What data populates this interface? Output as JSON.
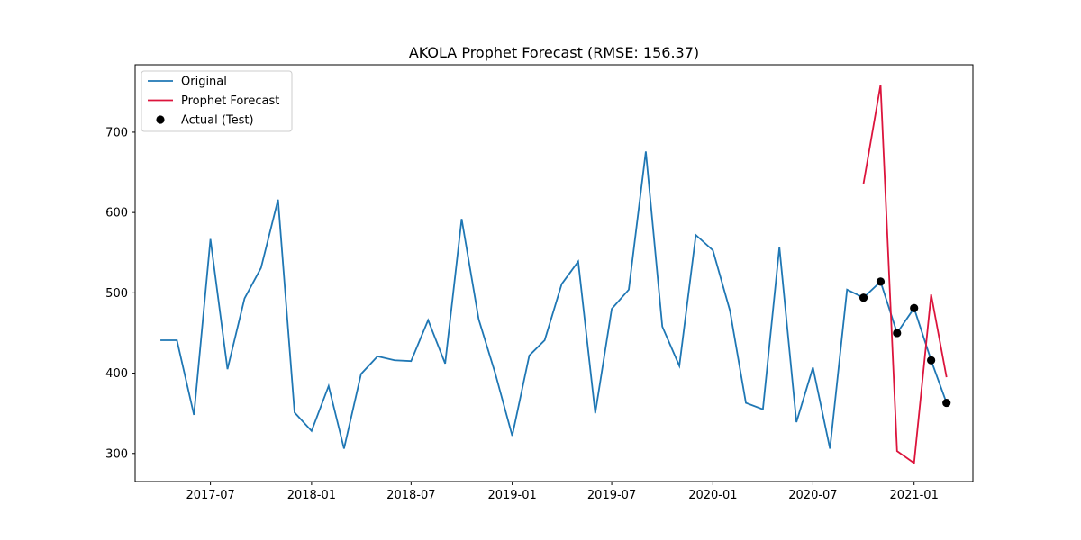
{
  "chart_data": {
    "type": "line",
    "title": "AKOLA Prophet Forecast (RMSE: 156.37)",
    "xlabel": "",
    "ylabel": "",
    "x_axis_type": "date",
    "xlim": [
      "2017-02-14",
      "2021-04-18"
    ],
    "ylim": [
      265,
      784
    ],
    "x_ticks": [
      "2017-07",
      "2018-01",
      "2018-07",
      "2019-01",
      "2019-07",
      "2020-01",
      "2020-07",
      "2021-01"
    ],
    "y_ticks": [
      300,
      400,
      500,
      600,
      700
    ],
    "grid": false,
    "legend_position": "top-left",
    "series": [
      {
        "name": "Original",
        "kind": "line",
        "color": "#1f77b4",
        "x": [
          "2017-04-01",
          "2017-05-01",
          "2017-06-01",
          "2017-07-01",
          "2017-08-01",
          "2017-09-01",
          "2017-10-01",
          "2017-11-01",
          "2017-12-01",
          "2018-01-01",
          "2018-02-01",
          "2018-03-01",
          "2018-04-01",
          "2018-05-01",
          "2018-06-01",
          "2018-07-01",
          "2018-08-01",
          "2018-09-01",
          "2018-10-01",
          "2018-11-01",
          "2018-12-01",
          "2019-01-01",
          "2019-02-01",
          "2019-03-01",
          "2019-04-01",
          "2019-05-01",
          "2019-06-01",
          "2019-07-01",
          "2019-08-01",
          "2019-09-01",
          "2019-10-01",
          "2019-11-01",
          "2019-12-01",
          "2020-01-01",
          "2020-02-01",
          "2020-03-01",
          "2020-04-01",
          "2020-05-01",
          "2020-06-01",
          "2020-07-01",
          "2020-08-01",
          "2020-09-01",
          "2020-10-01",
          "2020-11-01",
          "2020-12-01",
          "2021-01-01",
          "2021-02-01",
          "2021-03-01"
        ],
        "y": [
          441,
          441,
          348,
          567,
          405,
          493,
          531,
          616,
          351,
          328,
          384,
          306,
          399,
          421,
          416,
          415,
          466,
          412,
          592,
          467,
          400,
          322,
          422,
          441,
          511,
          539,
          350,
          480,
          504,
          676,
          458,
          409,
          572,
          553,
          478,
          363,
          355,
          557,
          339,
          407,
          306,
          504,
          494,
          514,
          450,
          481,
          416,
          363
        ]
      },
      {
        "name": "Prophet Forecast",
        "kind": "line",
        "color": "#dc143c",
        "x": [
          "2020-10-01",
          "2020-11-01",
          "2020-12-01",
          "2021-01-01",
          "2021-02-01",
          "2021-03-01"
        ],
        "y": [
          636,
          759,
          303,
          288,
          498,
          395
        ]
      },
      {
        "name": "Actual (Test)",
        "kind": "scatter",
        "color": "#000000",
        "x": [
          "2020-10-01",
          "2020-11-01",
          "2020-12-01",
          "2021-01-01",
          "2021-02-01",
          "2021-03-01"
        ],
        "y": [
          494,
          514,
          450,
          481,
          416,
          363
        ]
      }
    ]
  }
}
